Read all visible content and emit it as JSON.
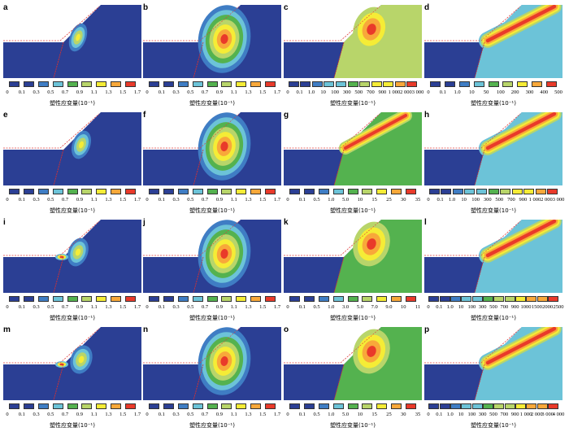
{
  "colors": [
    "#2b3f94",
    "#3f7dc4",
    "#6cc3d8",
    "#54b24f",
    "#b8d56a",
    "#f5ec36",
    "#f8a83a",
    "#e93a2a"
  ],
  "legend_label": "塑性应变量(10⁻¹)",
  "panels": [
    {
      "letter": "a",
      "ticks": [
        "0",
        "0.1",
        "0.3",
        "0.5",
        "0.7",
        "0.9",
        "1.1",
        "1.3",
        "1.5",
        "1.7"
      ]
    },
    {
      "letter": "b",
      "ticks": [
        "0",
        "0.1",
        "0.3",
        "0.5",
        "0.7",
        "0.9",
        "1.1",
        "1.3",
        "1.5",
        "1.7"
      ]
    },
    {
      "letter": "c",
      "ticks": [
        "0",
        "0.1",
        "1.0",
        "10",
        "100",
        "300",
        "500",
        "700",
        "900",
        "1 000",
        "2 000",
        "3 000"
      ]
    },
    {
      "letter": "d",
      "ticks": [
        "0",
        "0.1",
        "1.0",
        "10",
        "50",
        "100",
        "200",
        "300",
        "400",
        "500"
      ]
    },
    {
      "letter": "e",
      "ticks": [
        "0",
        "0.1",
        "0.3",
        "0.5",
        "0.7",
        "0.9",
        "1.1",
        "1.3",
        "1.5",
        "1.7"
      ]
    },
    {
      "letter": "f",
      "ticks": [
        "0",
        "0.1",
        "0.3",
        "0.5",
        "0.7",
        "0.9",
        "1.1",
        "1.3",
        "1.5",
        "1.7"
      ]
    },
    {
      "letter": "g",
      "ticks": [
        "0",
        "0.1",
        "0.5",
        "1.0",
        "5.0",
        "10",
        "15",
        "25",
        "30",
        "35"
      ]
    },
    {
      "letter": "h",
      "ticks": [
        "0",
        "0.1",
        "1.0",
        "10",
        "100",
        "300",
        "500",
        "700",
        "900",
        "1 000",
        "2 000",
        "3 000"
      ]
    },
    {
      "letter": "i",
      "ticks": [
        "0",
        "0.1",
        "0.3",
        "0.5",
        "0.7",
        "0.9",
        "1.1",
        "1.3",
        "1.5",
        "1.7"
      ]
    },
    {
      "letter": "j",
      "ticks": [
        "0",
        "0.1",
        "0.3",
        "0.5",
        "0.7",
        "0.9",
        "1.1",
        "1.3",
        "1.5",
        "1.7"
      ]
    },
    {
      "letter": "k",
      "ticks": [
        "0",
        "0.1",
        "0.5",
        "1.0",
        "3.0",
        "5.0",
        "7.0",
        "9.0",
        "10",
        "11"
      ]
    },
    {
      "letter": "l",
      "ticks": [
        "0",
        "0.1",
        "1.0",
        "10",
        "100",
        "300",
        "500",
        "700",
        "900",
        "1000",
        "1500",
        "2000",
        "2500"
      ]
    },
    {
      "letter": "m",
      "ticks": [
        "0",
        "0.1",
        "0.3",
        "0.5",
        "0.7",
        "0.9",
        "1.1",
        "1.3",
        "1.5",
        "1.7"
      ]
    },
    {
      "letter": "n",
      "ticks": [
        "0",
        "0.1",
        "0.3",
        "0.5",
        "0.7",
        "0.9",
        "1.1",
        "1.3",
        "1.5",
        "1.7"
      ]
    },
    {
      "letter": "o",
      "ticks": [
        "0",
        "0.1",
        "0.5",
        "1.0",
        "5.0",
        "10",
        "15",
        "25",
        "30",
        "35"
      ]
    },
    {
      "letter": "p",
      "ticks": [
        "0",
        "0.1",
        "1.0",
        "10",
        "100",
        "300",
        "500",
        "700",
        "900",
        "1 000",
        "2 000",
        "3 000",
        "4 000"
      ]
    }
  ]
}
